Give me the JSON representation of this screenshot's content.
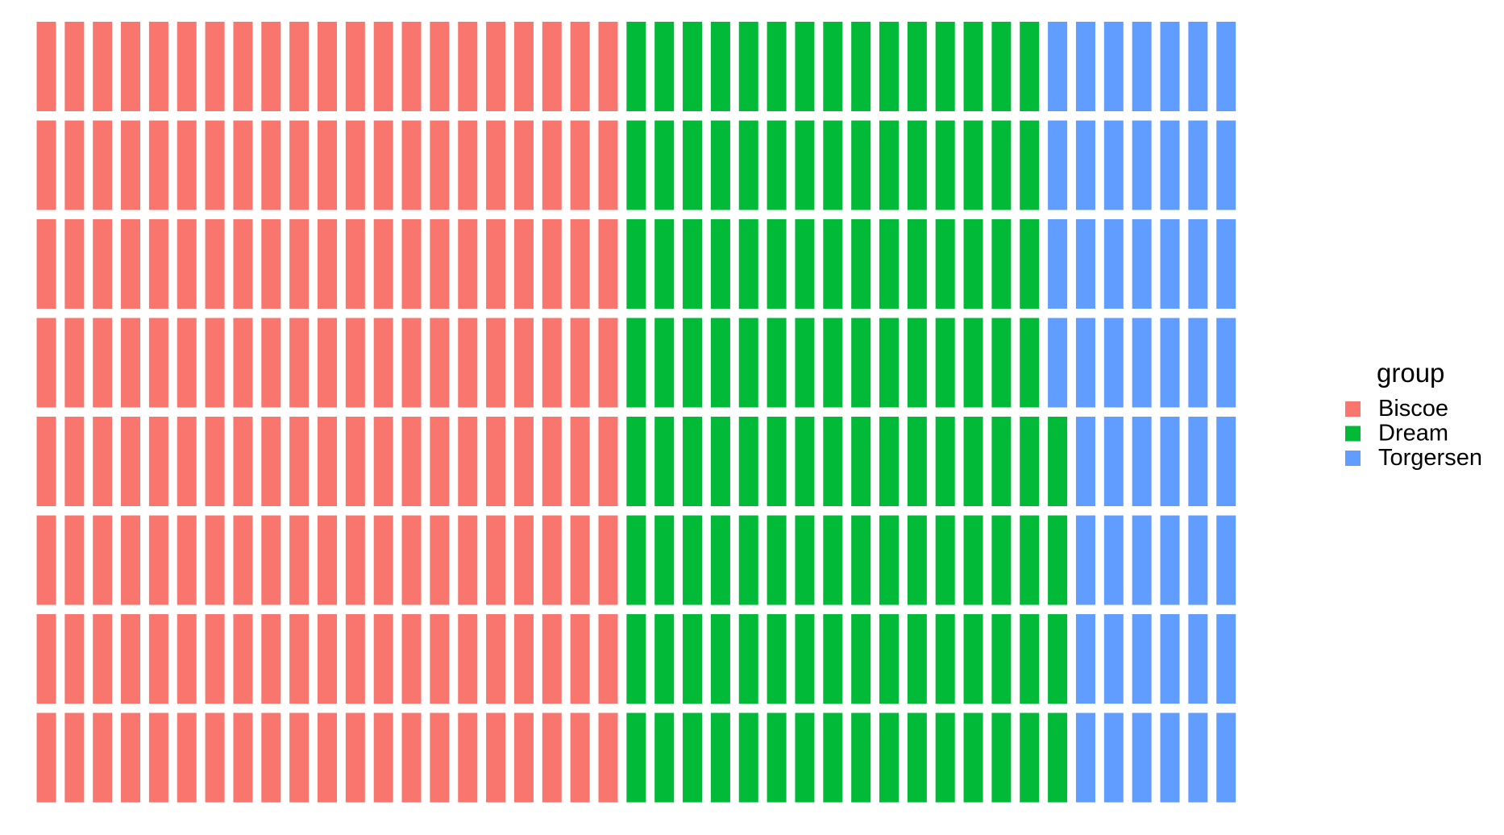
{
  "chart_data": {
    "type": "waffle",
    "grid": {
      "rows": 8,
      "columns": 43,
      "fill_order": "column-major, bottom-to-top"
    },
    "legend_title": "group",
    "legend_position": "right",
    "categories": [
      "Biscoe",
      "Dream",
      "Torgersen"
    ],
    "series": [
      {
        "name": "Biscoe",
        "value": 168,
        "color": "#F8766D"
      },
      {
        "name": "Dream",
        "value": 124,
        "color": "#00BA38"
      },
      {
        "name": "Torgersen",
        "value": 52,
        "color": "#619CFF"
      }
    ],
    "background_color": "#FFFFFF",
    "axes_visible": false
  }
}
